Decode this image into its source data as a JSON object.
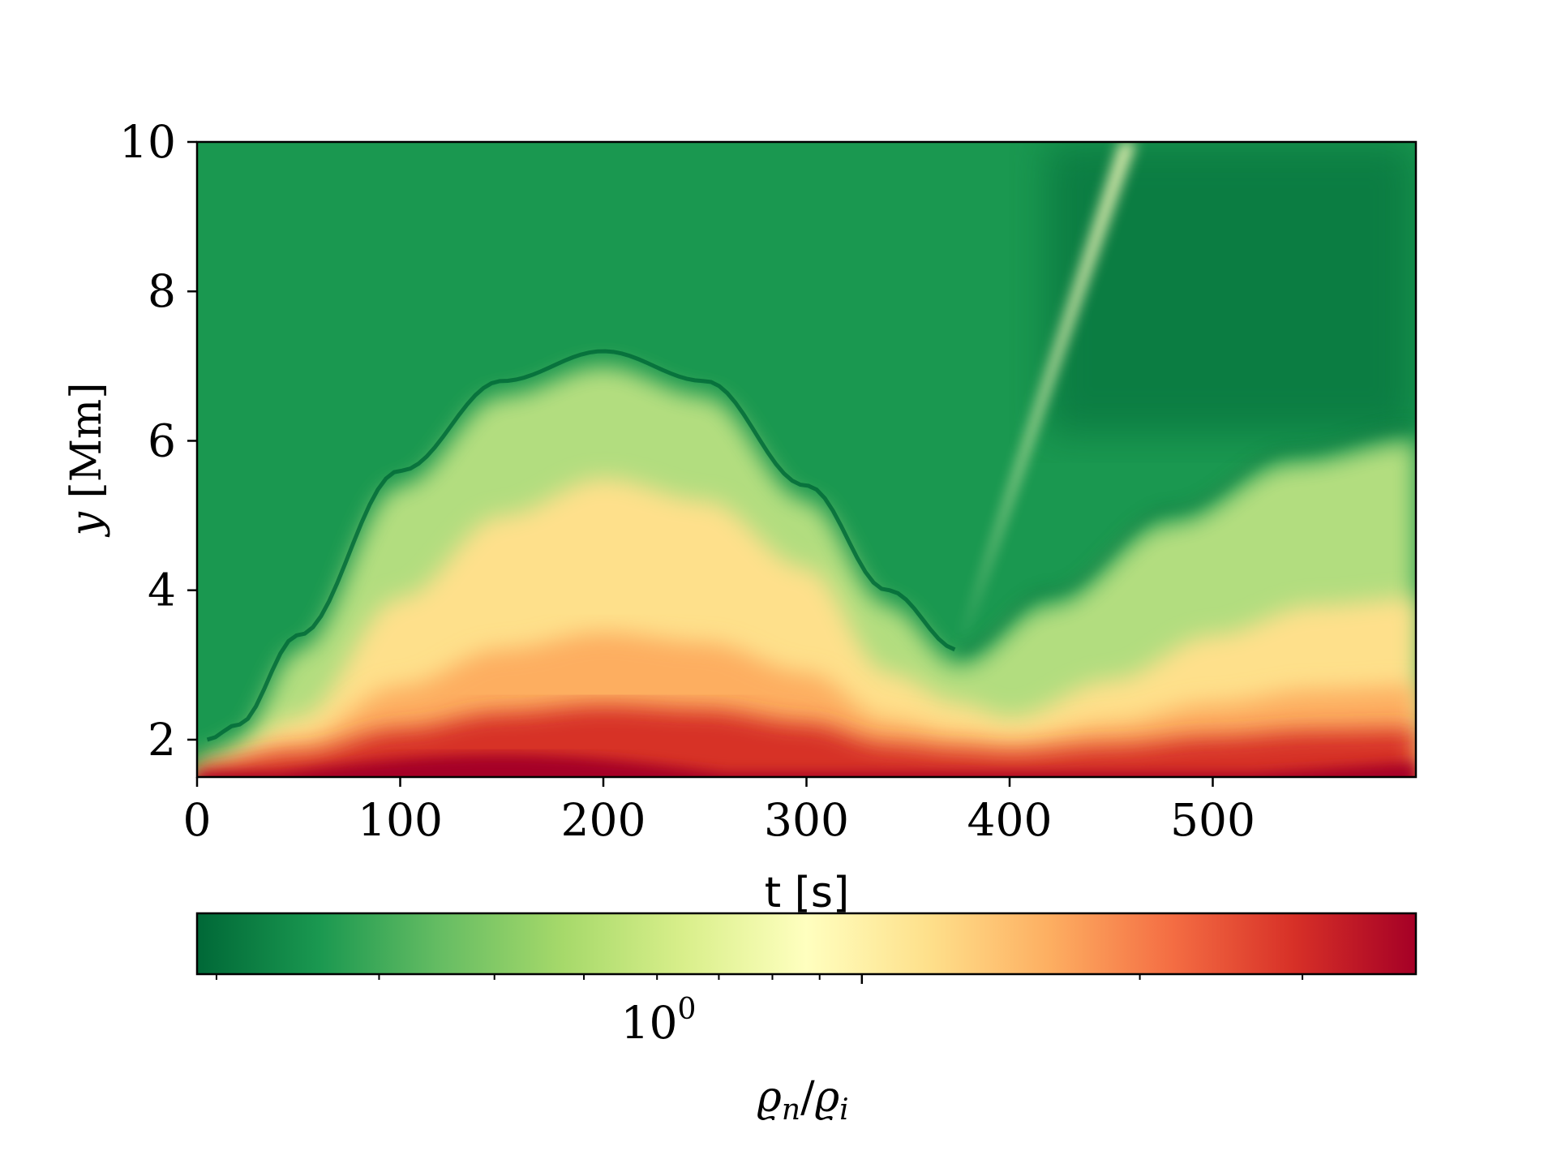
{
  "chart_data": {
    "type": "heatmap",
    "colormap": "RdYlGn_r",
    "x": {
      "label": "t [s]",
      "range": [
        0,
        600
      ],
      "ticks": [
        0,
        100,
        200,
        300,
        400,
        500
      ],
      "tick_labels": [
        "0",
        "100",
        "200",
        "300",
        "400",
        "500"
      ]
    },
    "y": {
      "label_var": "y",
      "label_unit": " [Mm]",
      "range": [
        1.5,
        10
      ],
      "ticks": [
        2,
        4,
        6,
        8,
        10
      ],
      "tick_labels": [
        "2",
        "4",
        "6",
        "8",
        "10"
      ]
    },
    "colorbar": {
      "scale": "log",
      "orientation": "horizontal",
      "major_tick_value": 1,
      "major_tick_base": "10",
      "major_tick_exponent": "0",
      "label_num_var": "ϱ",
      "label_num_sub": "n",
      "label_sep": "/",
      "label_den_var": "ϱ",
      "label_den_sub": "i",
      "colors": [
        "#006837",
        "#1a9850",
        "#66bd63",
        "#a6d96a",
        "#d9ef8b",
        "#ffffbf",
        "#fee08b",
        "#fdae61",
        "#f46d43",
        "#d73027",
        "#a50026"
      ]
    },
    "features": [
      {
        "kind": "dark-front",
        "t": [
          5,
          20,
          50,
          100,
          150,
          200,
          250,
          300,
          340,
          375
        ],
        "y": [
          2.0,
          2.2,
          3.4,
          5.6,
          6.8,
          7.2,
          6.8,
          5.4,
          4.0,
          3.2
        ]
      },
      {
        "kind": "yellow-band",
        "t": [
          0,
          50,
          100,
          150,
          200,
          250,
          300,
          340,
          375,
          400,
          450,
          500,
          550,
          600
        ],
        "y": [
          1.7,
          2.6,
          4.2,
          5.3,
          5.8,
          5.5,
          4.6,
          3.2,
          2.8,
          2.6,
          3.1,
          3.7,
          4.1,
          4.2
        ]
      },
      {
        "kind": "bright-streak",
        "t": [
          375,
          460
        ],
        "y": [
          3.2,
          10
        ]
      },
      {
        "kind": "second-front",
        "t": [
          375,
          420,
          480,
          540,
          600
        ],
        "y": [
          3.2,
          4.0,
          5.1,
          5.9,
          6.2
        ]
      }
    ]
  }
}
